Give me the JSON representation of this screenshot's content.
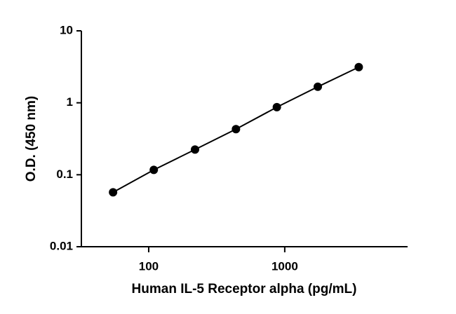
{
  "chart_data": {
    "type": "line",
    "x_label": "Human IL-5 Receptor alpha (pg/mL)",
    "y_label": "O.D. (450 nm)",
    "x": [
      54.7,
      109,
      219,
      438,
      875,
      1750,
      3500
    ],
    "series": [
      {
        "values": [
          0.057,
          0.117,
          0.224,
          0.43,
          0.87,
          1.67,
          3.13
        ],
        "color": "#000000"
      }
    ],
    "xlog": true,
    "ylog": true,
    "xlim": [
      32,
      8000
    ],
    "xticks": [
      100,
      1000
    ],
    "ylim": [
      0.01,
      10
    ],
    "yticks": [
      0.01,
      0.1,
      1,
      10
    ]
  }
}
